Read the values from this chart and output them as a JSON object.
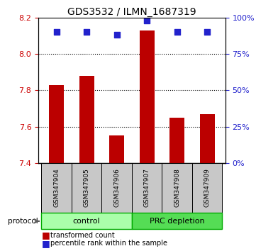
{
  "title": "GDS3532 / ILMN_1687319",
  "samples": [
    "GSM347904",
    "GSM347905",
    "GSM347906",
    "GSM347907",
    "GSM347908",
    "GSM347909"
  ],
  "bar_values": [
    7.83,
    7.88,
    7.55,
    8.13,
    7.65,
    7.67
  ],
  "bar_base": 7.4,
  "percentile_values": [
    90,
    90,
    88,
    98,
    90,
    90
  ],
  "percentile_scale_max": 100,
  "ylim": [
    7.4,
    8.2
  ],
  "yticks": [
    7.4,
    7.6,
    7.8,
    8.0,
    8.2
  ],
  "right_yticks": [
    0,
    25,
    50,
    75,
    100
  ],
  "bar_color": "#bb0000",
  "dot_color": "#2222cc",
  "left_tick_color": "#cc0000",
  "right_tick_color": "#2222cc",
  "grid_color": "#000000",
  "groups": [
    {
      "label": "control",
      "indices": [
        0,
        1,
        2
      ],
      "color": "#ccffcc",
      "border_color": "#00aa00"
    },
    {
      "label": "PRC depletion",
      "indices": [
        3,
        4,
        5
      ],
      "color": "#44dd44",
      "border_color": "#00aa00"
    }
  ],
  "protocol_label": "protocol",
  "legend": [
    {
      "color": "#bb0000",
      "marker": "s",
      "label": "transformed count"
    },
    {
      "color": "#2222cc",
      "marker": "s",
      "label": "percentile rank within the sample"
    }
  ],
  "bar_width": 0.5,
  "dot_size": 30
}
